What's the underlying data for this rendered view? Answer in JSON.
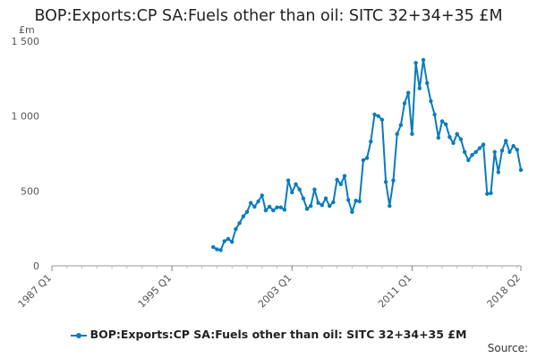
{
  "chart_data": {
    "type": "line",
    "title": "BOP:Exports:CP SA:Fuels other than oil: SITC 32+34+35 £M",
    "unit_label": "£m",
    "source_label": "Source:",
    "x_axis": {
      "type": "quarter",
      "range": [
        "1987 Q1",
        "2018 Q2"
      ],
      "tick_labels": [
        "1987 Q1",
        "1995 Q1",
        "2003 Q1",
        "2011 Q1",
        "2018 Q2"
      ]
    },
    "y_axis": {
      "range": [
        0,
        1500
      ],
      "ticks": [
        0,
        500,
        1000,
        1500
      ],
      "tick_labels": [
        "0",
        "500",
        "1 000",
        "1 500"
      ]
    },
    "grid": false,
    "legend_position": "bottom",
    "color": "#0a7bbd",
    "series": [
      {
        "name": "BOP:Exports:CP SA:Fuels other than oil: SITC 32+34+35 £M",
        "x": [
          "1997 Q4",
          "1998 Q1",
          "1998 Q2",
          "1998 Q3",
          "1998 Q4",
          "1999 Q1",
          "1999 Q2",
          "1999 Q3",
          "1999 Q4",
          "2000 Q1",
          "2000 Q2",
          "2000 Q3",
          "2000 Q4",
          "2001 Q1",
          "2001 Q2",
          "2001 Q3",
          "2001 Q4",
          "2002 Q1",
          "2002 Q2",
          "2002 Q3",
          "2002 Q4",
          "2003 Q1",
          "2003 Q2",
          "2003 Q3",
          "2003 Q4",
          "2004 Q1",
          "2004 Q2",
          "2004 Q3",
          "2004 Q4",
          "2005 Q1",
          "2005 Q2",
          "2005 Q3",
          "2005 Q4",
          "2006 Q1",
          "2006 Q2",
          "2006 Q3",
          "2006 Q4",
          "2007 Q1",
          "2007 Q2",
          "2007 Q3",
          "2007 Q4",
          "2008 Q1",
          "2008 Q2",
          "2008 Q3",
          "2008 Q4",
          "2009 Q1",
          "2009 Q2",
          "2009 Q3",
          "2009 Q4",
          "2010 Q1",
          "2010 Q2",
          "2010 Q3",
          "2010 Q4",
          "2011 Q1",
          "2011 Q2",
          "2011 Q3",
          "2011 Q4",
          "2012 Q1",
          "2012 Q2",
          "2012 Q3",
          "2012 Q4",
          "2013 Q1",
          "2013 Q2",
          "2013 Q3",
          "2013 Q4",
          "2014 Q1",
          "2014 Q2",
          "2014 Q3",
          "2014 Q4",
          "2015 Q1",
          "2015 Q2",
          "2015 Q3",
          "2015 Q4",
          "2016 Q1",
          "2016 Q2",
          "2016 Q3",
          "2016 Q4",
          "2017 Q1",
          "2017 Q2",
          "2017 Q3",
          "2017 Q4",
          "2018 Q1",
          "2018 Q2"
        ],
        "values": [
          125,
          110,
          105,
          165,
          180,
          160,
          245,
          285,
          330,
          360,
          420,
          395,
          430,
          470,
          370,
          395,
          370,
          390,
          390,
          375,
          570,
          490,
          545,
          510,
          450,
          380,
          400,
          510,
          420,
          405,
          450,
          400,
          425,
          575,
          545,
          600,
          440,
          360,
          435,
          430,
          705,
          720,
          830,
          1010,
          1000,
          975,
          560,
          400,
          570,
          880,
          940,
          1085,
          1155,
          880,
          1355,
          1185,
          1375,
          1220,
          1100,
          1010,
          855,
          965,
          945,
          860,
          820,
          880,
          845,
          760,
          705,
          740,
          760,
          785,
          810,
          480,
          485,
          760,
          625,
          770,
          835,
          760,
          800,
          775,
          640
        ]
      }
    ]
  }
}
